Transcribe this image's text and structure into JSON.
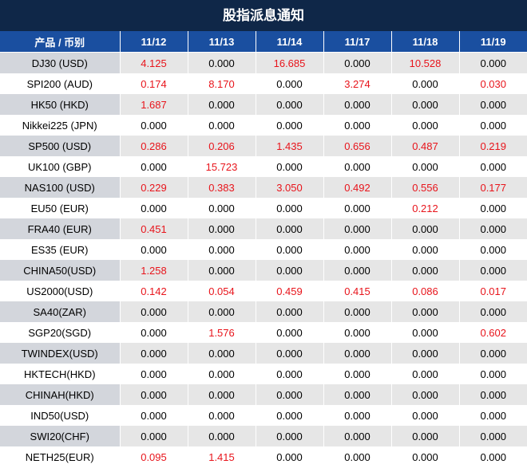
{
  "title": "股指派息通知",
  "header": {
    "product": "产品 / 币别",
    "dates": [
      "11/12",
      "11/13",
      "11/14",
      "11/17",
      "11/18",
      "11/19"
    ]
  },
  "colors": {
    "title_bg": "#0f2748",
    "header_bg": "#1a4fa0",
    "positive": "#e8141b"
  },
  "rows": [
    {
      "product": "DJ30 (USD)",
      "values": [
        "4.125",
        "0.000",
        "16.685",
        "0.000",
        "10.528",
        "0.000"
      ]
    },
    {
      "product": "SPI200 (AUD)",
      "values": [
        "0.174",
        "8.170",
        "0.000",
        "3.274",
        "0.000",
        "0.030"
      ]
    },
    {
      "product": "HK50 (HKD)",
      "values": [
        "1.687",
        "0.000",
        "0.000",
        "0.000",
        "0.000",
        "0.000"
      ]
    },
    {
      "product": "Nikkei225 (JPN)",
      "values": [
        "0.000",
        "0.000",
        "0.000",
        "0.000",
        "0.000",
        "0.000"
      ]
    },
    {
      "product": "SP500 (USD)",
      "values": [
        "0.286",
        "0.206",
        "1.435",
        "0.656",
        "0.487",
        "0.219"
      ]
    },
    {
      "product": "UK100 (GBP)",
      "values": [
        "0.000",
        "15.723",
        "0.000",
        "0.000",
        "0.000",
        "0.000"
      ]
    },
    {
      "product": "NAS100 (USD)",
      "values": [
        "0.229",
        "0.383",
        "3.050",
        "0.492",
        "0.556",
        "0.177"
      ]
    },
    {
      "product": "EU50 (EUR)",
      "values": [
        "0.000",
        "0.000",
        "0.000",
        "0.000",
        "0.212",
        "0.000"
      ]
    },
    {
      "product": "FRA40 (EUR)",
      "values": [
        "0.451",
        "0.000",
        "0.000",
        "0.000",
        "0.000",
        "0.000"
      ]
    },
    {
      "product": "ES35 (EUR)",
      "values": [
        "0.000",
        "0.000",
        "0.000",
        "0.000",
        "0.000",
        "0.000"
      ]
    },
    {
      "product": "CHINA50(USD)",
      "values": [
        "1.258",
        "0.000",
        "0.000",
        "0.000",
        "0.000",
        "0.000"
      ]
    },
    {
      "product": "US2000(USD)",
      "values": [
        "0.142",
        "0.054",
        "0.459",
        "0.415",
        "0.086",
        "0.017"
      ]
    },
    {
      "product": "SA40(ZAR)",
      "values": [
        "0.000",
        "0.000",
        "0.000",
        "0.000",
        "0.000",
        "0.000"
      ]
    },
    {
      "product": "SGP20(SGD)",
      "values": [
        "0.000",
        "1.576",
        "0.000",
        "0.000",
        "0.000",
        "0.602"
      ]
    },
    {
      "product": "TWINDEX(USD)",
      "values": [
        "0.000",
        "0.000",
        "0.000",
        "0.000",
        "0.000",
        "0.000"
      ]
    },
    {
      "product": "HKTECH(HKD)",
      "values": [
        "0.000",
        "0.000",
        "0.000",
        "0.000",
        "0.000",
        "0.000"
      ]
    },
    {
      "product": "CHINAH(HKD)",
      "values": [
        "0.000",
        "0.000",
        "0.000",
        "0.000",
        "0.000",
        "0.000"
      ]
    },
    {
      "product": "IND50(USD)",
      "values": [
        "0.000",
        "0.000",
        "0.000",
        "0.000",
        "0.000",
        "0.000"
      ]
    },
    {
      "product": "SWI20(CHF)",
      "values": [
        "0.000",
        "0.000",
        "0.000",
        "0.000",
        "0.000",
        "0.000"
      ]
    },
    {
      "product": "NETH25(EUR)",
      "values": [
        "0.095",
        "1.415",
        "0.000",
        "0.000",
        "0.000",
        "0.000"
      ]
    }
  ]
}
